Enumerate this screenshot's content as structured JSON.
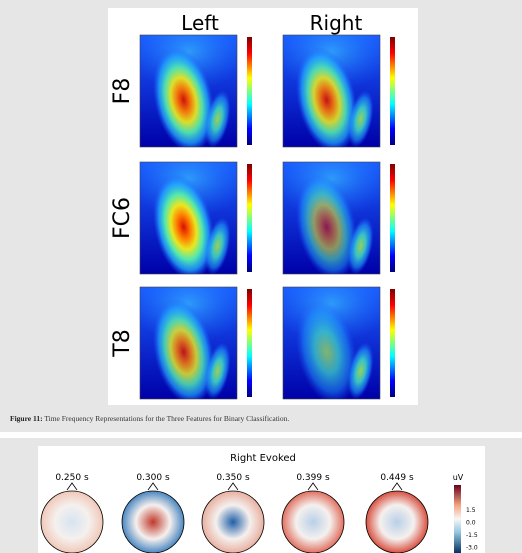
{
  "figure_top": {
    "column_headers": [
      "Left",
      "Right"
    ],
    "row_labels": [
      "F8",
      "FC6",
      "T8"
    ],
    "caption_label": "Figure 11:",
    "caption_text": " Time Frequency Representations for the Three Features for Binary Classification."
  },
  "figure_bottom": {
    "title": "Right Evoked",
    "times": [
      "0.250 s",
      "0.300 s",
      "0.350 s",
      "0.399 s",
      "0.449 s"
    ],
    "unit": "uV",
    "colorbar_ticks": [
      "1.5",
      "0.0",
      "-1.5",
      "-3.0"
    ]
  }
}
